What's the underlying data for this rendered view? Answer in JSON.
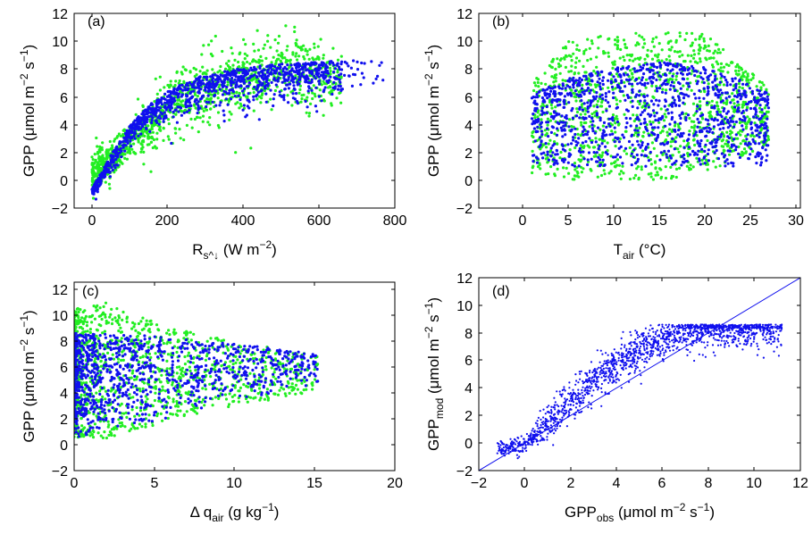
{
  "colors": {
    "observed": "#22ee22",
    "modeled": "#1010ee",
    "axis": "#000000",
    "one_to_one_line": "#1010ee"
  },
  "chart_data": [
    {
      "panel_label": "(a)",
      "type": "scatter",
      "xlabel": "R_s^↓ (W m^-2)",
      "ylabel": "GPP (μmol m^-2 s^-1)",
      "xlim": [
        -50,
        800
      ],
      "ylim": [
        -2,
        13
      ],
      "xticks": [
        "0",
        "200",
        "400",
        "600",
        "800"
      ],
      "yticks": [
        "−2",
        "0",
        "2",
        "4",
        "6",
        "8",
        "10",
        "12"
      ],
      "series": [
        {
          "name": "",
          "marker_color": "observed",
          "cloud": [
            [
              0,
              -1,
              2
            ],
            [
              50,
              0,
              3
            ],
            [
              100,
              1.5,
              4.5
            ],
            [
              150,
              2,
              6
            ],
            [
              200,
              3,
              7.5
            ],
            [
              250,
              3.5,
              8.5
            ],
            [
              300,
              4,
              9
            ],
            [
              400,
              4.5,
              10
            ],
            [
              500,
              5,
              11
            ],
            [
              600,
              5,
              10
            ],
            [
              660,
              5.5,
              9
            ]
          ],
          "points": 1200
        },
        {
          "name": "",
          "marker_color": "modeled",
          "curve": [
            [
              0,
              -0.6
            ],
            [
              50,
              1.8
            ],
            [
              100,
              3.9
            ],
            [
              150,
              5.4
            ],
            [
              200,
              6.4
            ],
            [
              250,
              7.1
            ],
            [
              300,
              7.6
            ],
            [
              400,
              8.1
            ],
            [
              500,
              8.4
            ],
            [
              600,
              8.5
            ],
            [
              660,
              8.6
            ]
          ],
          "spread": 1.2,
          "points": 1100
        }
      ]
    },
    {
      "panel_label": "(b)",
      "type": "scatter",
      "xlabel": "T_air (°C)",
      "ylabel": "GPP (μmol m^-2 s^-1)",
      "xlim": [
        -2.5,
        30
      ],
      "ylim": [
        -2,
        13
      ],
      "xticks": [
        "0",
        "5",
        "10",
        "15",
        "20",
        "25",
        "30"
      ],
      "yticks": [
        "−2",
        "0",
        "2",
        "4",
        "6",
        "8",
        "10",
        "12"
      ],
      "series": [
        {
          "name": "",
          "marker_color": "observed",
          "range_x": [
            1,
            27
          ],
          "envelope": [
            [
              1,
              0.5,
              7
            ],
            [
              5,
              0,
              10
            ],
            [
              10,
              0,
              10.5
            ],
            [
              15,
              0,
              11
            ],
            [
              20,
              0.5,
              10.5
            ],
            [
              25,
              2,
              8
            ],
            [
              27,
              2.5,
              6.5
            ]
          ],
          "points": 1200
        },
        {
          "name": "",
          "marker_color": "modeled",
          "range_x": [
            1,
            27
          ],
          "upper_curve": [
            [
              1,
              6.2
            ],
            [
              5,
              7.3
            ],
            [
              10,
              8.1
            ],
            [
              15,
              8.5
            ],
            [
              20,
              8.2
            ],
            [
              24,
              7.2
            ],
            [
              26.5,
              6.4
            ]
          ],
          "lower": 1,
          "points": 1100
        }
      ]
    },
    {
      "panel_label": "(c)",
      "type": "scatter",
      "xlabel": "Δ q_air (g kg^-1)",
      "ylabel": "GPP (μmol m^-2 s^-1)",
      "xlim": [
        0,
        20
      ],
      "ylim": [
        -2,
        13
      ],
      "xticks": [
        "0",
        "5",
        "10",
        "15",
        "20"
      ],
      "yticks": [
        "−2",
        "0",
        "2",
        "4",
        "6",
        "8",
        "10",
        "12"
      ],
      "series": [
        {
          "name": "",
          "marker_color": "observed",
          "envelope": [
            [
              0,
              0.5,
              10.5
            ],
            [
              2,
              0.5,
              11
            ],
            [
              4,
              1,
              10
            ],
            [
              6,
              2,
              9
            ],
            [
              10,
              3,
              8
            ],
            [
              15,
              4,
              7
            ]
          ],
          "points": 1200
        },
        {
          "name": "",
          "marker_color": "modeled",
          "envelope": [
            [
              0,
              0.5,
              8.6
            ],
            [
              2,
              1,
              8.6
            ],
            [
              4,
              1.5,
              8.5
            ],
            [
              6,
              2,
              8.2
            ],
            [
              10,
              3.5,
              7.8
            ],
            [
              15.2,
              4.5,
              7
            ]
          ],
          "points": 1100
        }
      ]
    },
    {
      "panel_label": "(d)",
      "type": "scatter",
      "xlabel": "GPP_obs (μmol m^-2 s^-1)",
      "ylabel": "GPP_mod (μmol m^-2 s^-1)",
      "xlim": [
        -2,
        12
      ],
      "ylim": [
        -2,
        12
      ],
      "xticks": [
        "−2",
        "0",
        "2",
        "4",
        "6",
        "8",
        "10",
        "12"
      ],
      "yticks": [
        "−2",
        "0",
        "2",
        "4",
        "6",
        "8",
        "10",
        "12"
      ],
      "one_to_one_line": [
        [
          -2,
          -2
        ],
        [
          12,
          12
        ]
      ],
      "series": [
        {
          "name": "",
          "marker_color": "modeled",
          "relation": [
            [
              -1,
              -0.4
            ],
            [
              0,
              -0.2
            ],
            [
              1,
              1.5
            ],
            [
              2,
              3
            ],
            [
              3,
              4.5
            ],
            [
              4,
              5.8
            ],
            [
              5,
              6.8
            ],
            [
              6,
              7.6
            ],
            [
              7,
              8.1
            ],
            [
              8,
              8.3
            ],
            [
              10,
              8.3
            ],
            [
              11,
              8.3
            ]
          ],
          "spread": 1.2,
          "points": 1600
        }
      ]
    }
  ]
}
